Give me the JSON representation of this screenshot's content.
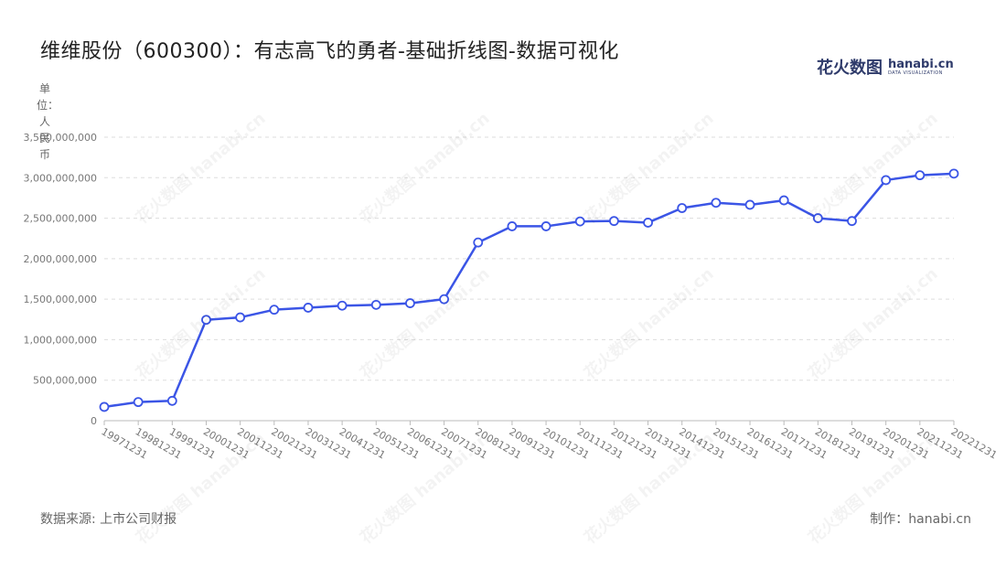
{
  "title": "维维股份（600300）：有志高飞的勇者-基础折线图-数据可视化",
  "logo": {
    "cn": "花火数图",
    "en": "hanabi.cn",
    "sub": "DATA VISUALIZATION"
  },
  "unit_label": "单位：人民币",
  "footer": {
    "source": "数据来源: 上市公司财报",
    "maker": "制作：hanabi.cn"
  },
  "watermark": "花火数图 hanabi.cn",
  "colors": {
    "line": "#3b55e6",
    "point_fill": "#ffffff",
    "grid": "#dddddd"
  },
  "chart_data": {
    "type": "line",
    "categories": [
      "19971231",
      "19981231",
      "19991231",
      "20001231",
      "20011231",
      "20021231",
      "20031231",
      "20041231",
      "20051231",
      "20061231",
      "20071231",
      "20081231",
      "20091231",
      "20101231",
      "20111231",
      "20121231",
      "20131231",
      "20141231",
      "20151231",
      "20161231",
      "20171231",
      "20181231",
      "20191231",
      "20201231",
      "20211231",
      "20221231"
    ],
    "values": [
      170000000,
      230000000,
      245000000,
      1245000000,
      1275000000,
      1370000000,
      1395000000,
      1420000000,
      1430000000,
      1450000000,
      1500000000,
      2200000000,
      2400000000,
      2400000000,
      2460000000,
      2465000000,
      2445000000,
      2625000000,
      2690000000,
      2665000000,
      2720000000,
      2500000000,
      2465000000,
      2970000000,
      3030000000,
      3050000000
    ],
    "ylim": [
      0,
      3500000000
    ],
    "yticks": [
      0,
      500000000,
      1000000000,
      1500000000,
      2000000000,
      2500000000,
      3000000000,
      3500000000
    ],
    "ytick_labels": [
      "0",
      "500,000,000",
      "1,000,000,000",
      "1,500,000,000",
      "2,000,000,000",
      "2,500,000,000",
      "3,000,000,000",
      "3,500,000,000"
    ],
    "grid": true,
    "legend": "none"
  }
}
